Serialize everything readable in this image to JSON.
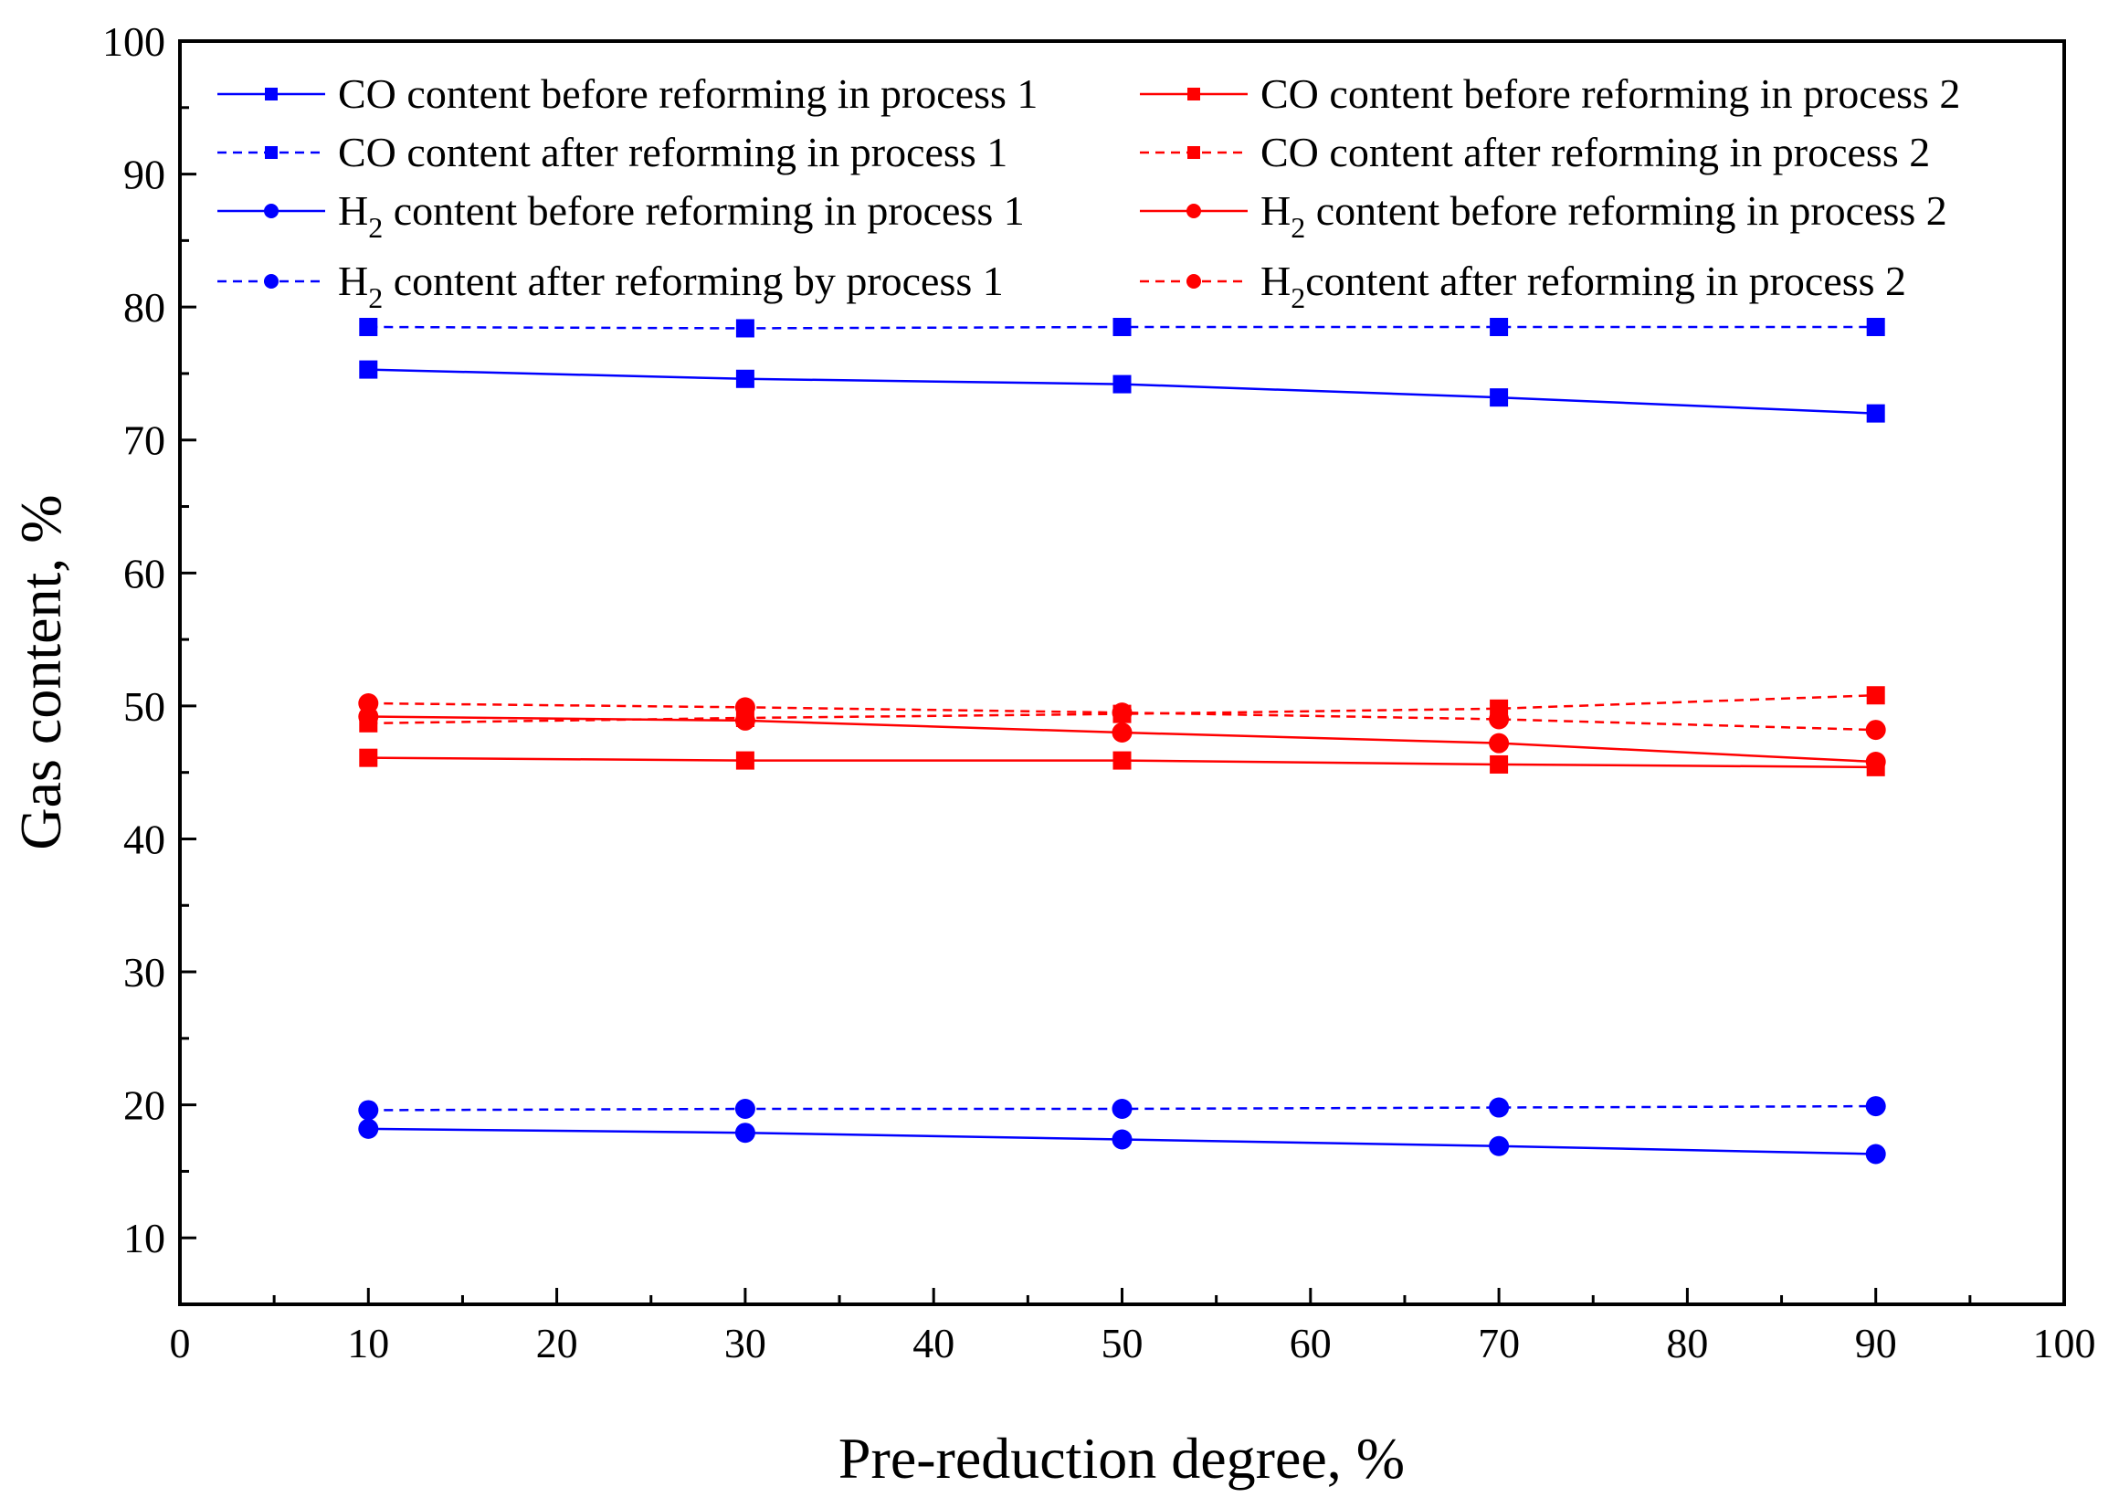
{
  "chart_data": {
    "type": "line",
    "xlabel": "Pre-reduction degree, %",
    "ylabel": "Gas content, %",
    "xlim": [
      0,
      100
    ],
    "ylim": [
      5,
      100
    ],
    "x_ticks": [
      0,
      10,
      20,
      30,
      40,
      50,
      60,
      70,
      80,
      90,
      100
    ],
    "y_ticks": [
      10,
      20,
      30,
      40,
      50,
      60,
      70,
      80,
      90,
      100
    ],
    "x": [
      10,
      30,
      50,
      70,
      90
    ],
    "series": [
      {
        "name": "CO content before reforming in process 1",
        "color": "#0000ff",
        "marker": "square",
        "line": "solid",
        "values": [
          75.3,
          74.6,
          74.2,
          73.2,
          72.0
        ]
      },
      {
        "name": "CO content before reforming in process 2",
        "color": "#ff0000",
        "marker": "square",
        "line": "solid",
        "values": [
          46.1,
          45.9,
          45.9,
          45.6,
          45.4
        ]
      },
      {
        "name": "CO content after reforming in process 1",
        "color": "#0000ff",
        "marker": "square",
        "line": "dashed",
        "values": [
          78.5,
          78.4,
          78.5,
          78.5,
          78.5
        ]
      },
      {
        "name": "CO content after reforming in process 2",
        "color": "#ff0000",
        "marker": "square",
        "line": "dashed",
        "values": [
          48.7,
          49.1,
          49.4,
          49.8,
          50.8
        ]
      },
      {
        "name": "H2 content before reforming in process 1",
        "color": "#0000ff",
        "marker": "circle",
        "line": "solid",
        "values": [
          18.2,
          17.9,
          17.4,
          16.9,
          16.3
        ]
      },
      {
        "name": "H2 content before reforming in process 2",
        "color": "#ff0000",
        "marker": "circle",
        "line": "solid",
        "values": [
          49.2,
          48.9,
          48.0,
          47.2,
          45.8
        ]
      },
      {
        "name": "H2 content after reforming by process  1",
        "color": "#0000ff",
        "marker": "circle",
        "line": "dashed",
        "values": [
          19.6,
          19.7,
          19.7,
          19.8,
          19.9
        ]
      },
      {
        "name": "H2content after reforming in process 2",
        "color": "#ff0000",
        "marker": "circle",
        "line": "dashed",
        "values": [
          50.2,
          49.9,
          49.5,
          49.0,
          48.2
        ]
      }
    ],
    "legend": {
      "placement": "top",
      "columns": 2,
      "entries": [
        {
          "series": 0,
          "parts": [
            {
              "t": "CO content before reforming in process 1"
            }
          ]
        },
        {
          "series": 1,
          "parts": [
            {
              "t": "CO content before reforming in process 2"
            }
          ]
        },
        {
          "series": 2,
          "parts": [
            {
              "t": "CO content after reforming in process 1"
            }
          ]
        },
        {
          "series": 3,
          "parts": [
            {
              "t": "CO content after reforming in process 2"
            }
          ]
        },
        {
          "series": 4,
          "parts": [
            {
              "t": "H"
            },
            {
              "t": "2",
              "sub": true
            },
            {
              "t": " content before reforming in process 1"
            }
          ]
        },
        {
          "series": 5,
          "parts": [
            {
              "t": "H"
            },
            {
              "t": "2",
              "sub": true
            },
            {
              "t": " content before reforming in process 2"
            }
          ]
        },
        {
          "series": 6,
          "parts": [
            {
              "t": "H"
            },
            {
              "t": "2",
              "sub": true
            },
            {
              "t": " content after reforming by process  1"
            }
          ]
        },
        {
          "series": 7,
          "parts": [
            {
              "t": "H"
            },
            {
              "t": "2",
              "sub": true
            },
            {
              "t": "content after reforming in process 2"
            }
          ]
        }
      ]
    }
  }
}
